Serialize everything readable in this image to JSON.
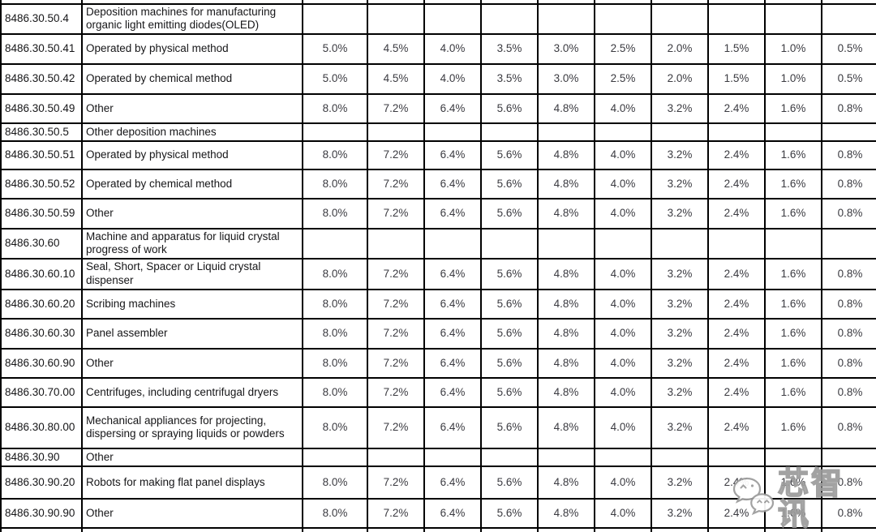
{
  "table": {
    "rows": [
      {
        "code": "8486.30.50.4",
        "description": "Deposition machines for manufacturing organic light emitting diodes(OLED)",
        "rates": [
          "",
          "",
          "",
          "",
          "",
          "",
          "",
          "",
          "",
          ""
        ]
      },
      {
        "code": "8486.30.50.41",
        "description": "Operated by physical method",
        "rates": [
          "5.0%",
          "4.5%",
          "4.0%",
          "3.5%",
          "3.0%",
          "2.5%",
          "2.0%",
          "1.5%",
          "1.0%",
          "0.5%"
        ]
      },
      {
        "code": "8486.30.50.42",
        "description": "Operated by chemical method",
        "rates": [
          "5.0%",
          "4.5%",
          "4.0%",
          "3.5%",
          "3.0%",
          "2.5%",
          "2.0%",
          "1.5%",
          "1.0%",
          "0.5%"
        ]
      },
      {
        "code": "8486.30.50.49",
        "description": "Other",
        "rates": [
          "8.0%",
          "7.2%",
          "6.4%",
          "5.6%",
          "4.8%",
          "4.0%",
          "3.2%",
          "2.4%",
          "1.6%",
          "0.8%"
        ]
      },
      {
        "code": "8486.30.50.5",
        "description": "Other deposition machines",
        "rates": [
          "",
          "",
          "",
          "",
          "",
          "",
          "",
          "",
          "",
          ""
        ]
      },
      {
        "code": "8486.30.50.51",
        "description": "Operated by physical method",
        "rates": [
          "8.0%",
          "7.2%",
          "6.4%",
          "5.6%",
          "4.8%",
          "4.0%",
          "3.2%",
          "2.4%",
          "1.6%",
          "0.8%"
        ]
      },
      {
        "code": "8486.30.50.52",
        "description": "Operated by chemical method",
        "rates": [
          "8.0%",
          "7.2%",
          "6.4%",
          "5.6%",
          "4.8%",
          "4.0%",
          "3.2%",
          "2.4%",
          "1.6%",
          "0.8%"
        ]
      },
      {
        "code": "8486.30.50.59",
        "description": "Other",
        "rates": [
          "8.0%",
          "7.2%",
          "6.4%",
          "5.6%",
          "4.8%",
          "4.0%",
          "3.2%",
          "2.4%",
          "1.6%",
          "0.8%"
        ]
      },
      {
        "code": "8486.30.60",
        "description": "Machine and apparatus for liquid crystal progress of work",
        "rates": [
          "",
          "",
          "",
          "",
          "",
          "",
          "",
          "",
          "",
          ""
        ]
      },
      {
        "code": "8486.30.60.10",
        "description": "Seal, Short, Spacer or Liquid crystal dispenser",
        "rates": [
          "8.0%",
          "7.2%",
          "6.4%",
          "5.6%",
          "4.8%",
          "4.0%",
          "3.2%",
          "2.4%",
          "1.6%",
          "0.8%"
        ]
      },
      {
        "code": "8486.30.60.20",
        "description": "Scribing machines",
        "rates": [
          "8.0%",
          "7.2%",
          "6.4%",
          "5.6%",
          "4.8%",
          "4.0%",
          "3.2%",
          "2.4%",
          "1.6%",
          "0.8%"
        ]
      },
      {
        "code": "8486.30.60.30",
        "description": "Panel assembler",
        "rates": [
          "8.0%",
          "7.2%",
          "6.4%",
          "5.6%",
          "4.8%",
          "4.0%",
          "3.2%",
          "2.4%",
          "1.6%",
          "0.8%"
        ]
      },
      {
        "code": "8486.30.60.90",
        "description": "Other",
        "rates": [
          "8.0%",
          "7.2%",
          "6.4%",
          "5.6%",
          "4.8%",
          "4.0%",
          "3.2%",
          "2.4%",
          "1.6%",
          "0.8%"
        ]
      },
      {
        "code": "8486.30.70.00",
        "description": "Centrifuges, including centrifugal dryers",
        "rates": [
          "8.0%",
          "7.2%",
          "6.4%",
          "5.6%",
          "4.8%",
          "4.0%",
          "3.2%",
          "2.4%",
          "1.6%",
          "0.8%"
        ]
      },
      {
        "code": "8486.30.80.00",
        "description": "Mechanical appliances for projecting, dispersing or spraying liquids or powders",
        "rates": [
          "8.0%",
          "7.2%",
          "6.4%",
          "5.6%",
          "4.8%",
          "4.0%",
          "3.2%",
          "2.4%",
          "1.6%",
          "0.8%"
        ]
      },
      {
        "code": "8486.30.90",
        "description": "Other",
        "rates": [
          "",
          "",
          "",
          "",
          "",
          "",
          "",
          "",
          "",
          ""
        ]
      },
      {
        "code": "8486.30.90.20",
        "description": "Robots for making flat panel displays",
        "rates": [
          "8.0%",
          "7.2%",
          "6.4%",
          "5.6%",
          "4.8%",
          "4.0%",
          "3.2%",
          "2.4%",
          "1.6%",
          "0.8%"
        ]
      },
      {
        "code": "8486.30.90.90",
        "description": "Other",
        "rates": [
          "8.0%",
          "7.2%",
          "6.4%",
          "5.6%",
          "4.8%",
          "4.0%",
          "3.2%",
          "2.4%",
          "1.6%",
          "0.8%"
        ]
      }
    ]
  },
  "watermark": {
    "text": "芯智讯",
    "icon": "wechat-icon"
  },
  "colors": {
    "grid": "#000000",
    "text": "#161618",
    "rate_text": "#3b3b41",
    "watermark_outline": "#9b9b9b"
  }
}
